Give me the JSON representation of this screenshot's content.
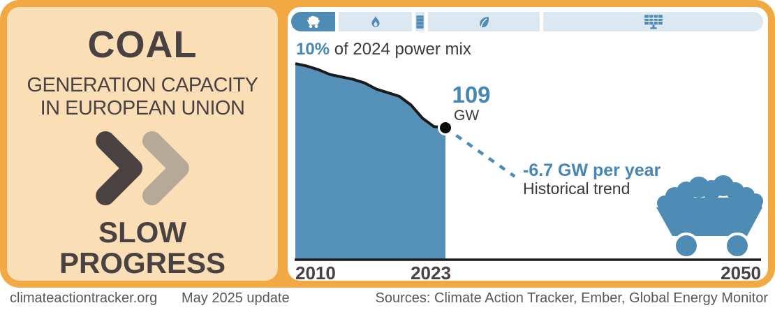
{
  "panel": {
    "title": "COAL",
    "subtitle_line1": "GENERATION CAPACITY",
    "subtitle_line2": "IN EUROPEAN UNION",
    "verdict_line1": "SLOW",
    "verdict_line2": "PROGRESS"
  },
  "tabs": [
    {
      "id": "coal",
      "icon": "coal-cart-icon",
      "selected": true
    },
    {
      "id": "gas",
      "icon": "flame-icon",
      "selected": false
    },
    {
      "id": "oil",
      "icon": "oil-barrel-icon",
      "selected": false
    },
    {
      "id": "bioenergy",
      "icon": "leaf-icon",
      "selected": false
    },
    {
      "id": "solar",
      "icon": "solar-panel-icon",
      "selected": false
    }
  ],
  "mix": {
    "percent": "10%",
    "rest": " of 2024 power mix"
  },
  "chart_data": {
    "type": "area",
    "title": "Coal generation capacity in European Union",
    "x": [
      2010,
      2011,
      2012,
      2013,
      2014,
      2015,
      2016,
      2017,
      2018,
      2019,
      2020,
      2021,
      2022,
      2023
    ],
    "values": [
      162,
      160,
      157,
      153,
      151,
      149,
      146,
      141,
      138,
      135,
      128,
      117,
      110,
      109
    ],
    "unit": "GW",
    "endpoint_value": "109",
    "endpoint_unit": "GW",
    "trend_label": "-6.7 GW per year",
    "trend_sublabel": "Historical trend",
    "trend": {
      "rate_gw_per_year": -6.7,
      "from_year": 2023,
      "to_year": 2029
    },
    "x_ticks": [
      "2010",
      "2023",
      "2050"
    ],
    "x_range": [
      2010,
      2050
    ],
    "y_range_gw": [
      0,
      165
    ],
    "grid": false,
    "legend": "none",
    "area_color": "#5590B8",
    "line_color": "#1A1A1A",
    "trend_color": "#4E8CB5"
  },
  "footer": {
    "site": "climateactiontracker.org",
    "update": "May 2025 update",
    "sources": "Sources: Climate Action Tracker, Ember, Global Energy Monitor"
  },
  "colors": {
    "frame_orange": "#F2A843",
    "panel_peach": "#FADFB6",
    "dark_text": "#4A4143",
    "tan_chevron": "#B5A997",
    "steel_blue": "#4E8CB5",
    "text_blue": "#4586B4",
    "tab_light_blue": "#DCE8F1"
  }
}
